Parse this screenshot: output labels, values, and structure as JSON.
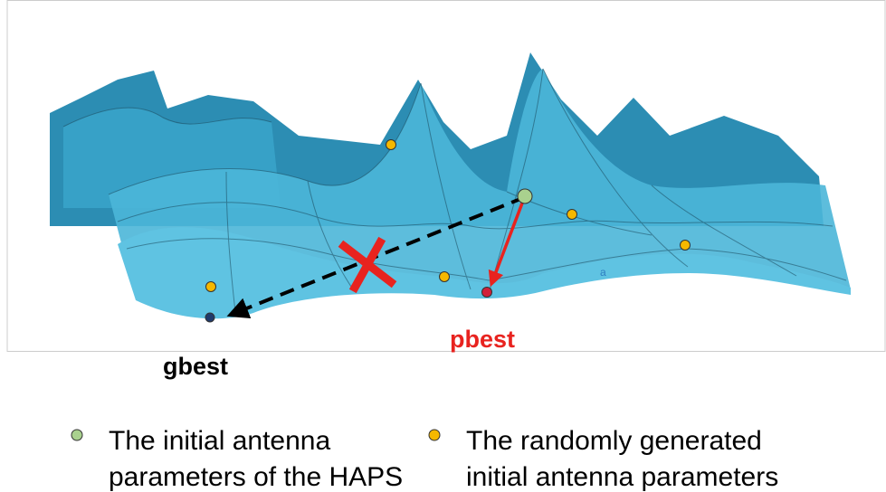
{
  "labels": {
    "gbest": "gbest",
    "pbest": "pbest",
    "surface_mark": "a"
  },
  "legend": {
    "items": [
      {
        "lines": [
          "The initial antenna",
          "parameters of the HAPS"
        ]
      },
      {
        "lines": [
          "The randomly generated",
          "initial antenna parameters"
        ]
      }
    ]
  }
}
